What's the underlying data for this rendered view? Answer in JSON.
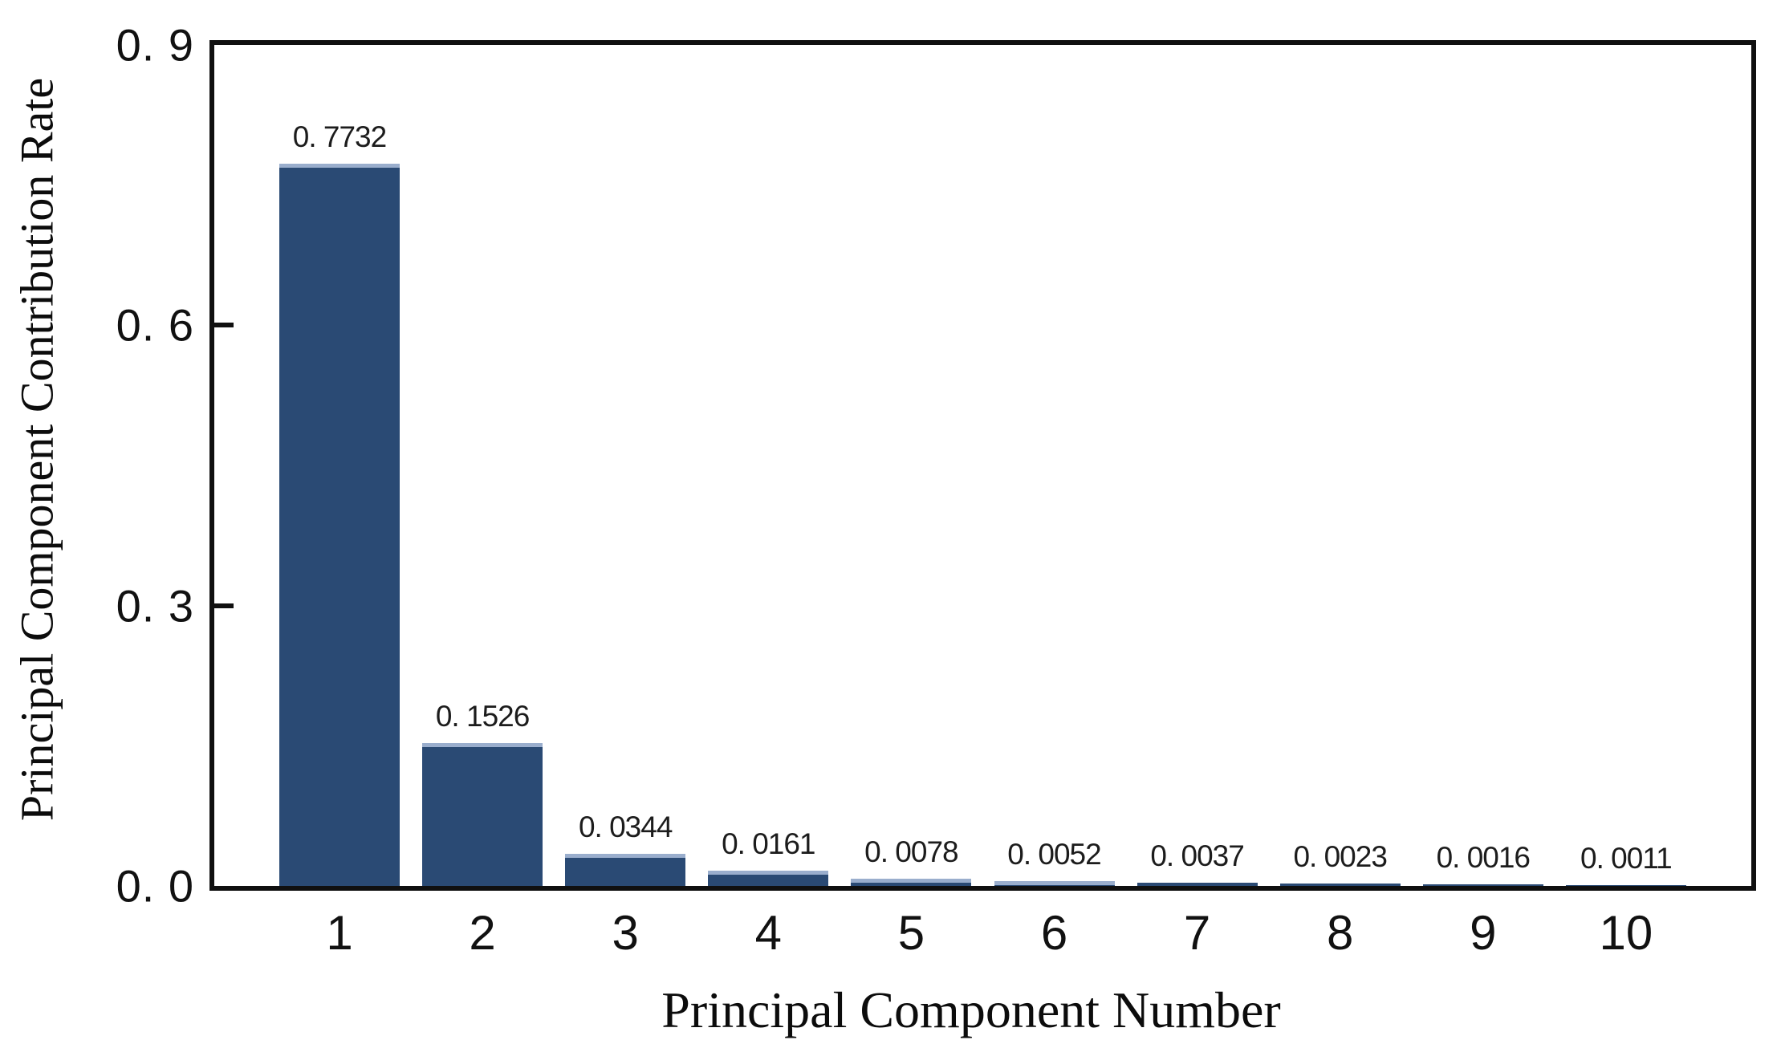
{
  "chart_data": {
    "type": "bar",
    "title": "",
    "xlabel": "Principal Component Number",
    "ylabel": "Principal Component Contribution Rate",
    "categories": [
      "1",
      "2",
      "3",
      "4",
      "5",
      "6",
      "7",
      "8",
      "9",
      "10"
    ],
    "values": [
      0.7732,
      0.1526,
      0.0344,
      0.0161,
      0.0078,
      0.0052,
      0.0037,
      0.0023,
      0.0016,
      0.0011
    ],
    "bar_value_labels": [
      "0. 7732",
      "0. 1526",
      "0. 0344",
      "0. 0161",
      "0. 0078",
      "0. 0052",
      "0. 0037",
      "0. 0023",
      "0. 0016",
      "0. 0011"
    ],
    "y_ticks": [
      {
        "value": 0.0,
        "label": "0. 0"
      },
      {
        "value": 0.3,
        "label": "0. 3"
      },
      {
        "value": 0.6,
        "label": "0. 6"
      },
      {
        "value": 0.9,
        "label": "0. 9"
      }
    ],
    "ylim": [
      0,
      0.9
    ],
    "grid": false,
    "legend": null,
    "colors": {
      "bar_fill": "#2a4a74",
      "bar_top_edge": "#9aaecd",
      "axis_spine": "#101010",
      "text": "#111111"
    }
  }
}
